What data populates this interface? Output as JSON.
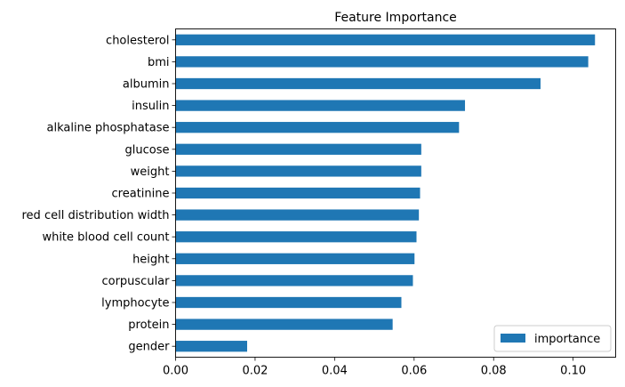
{
  "chart_data": {
    "type": "bar",
    "orientation": "horizontal",
    "title": "Feature Importance",
    "xlabel": "",
    "ylabel": "",
    "categories": [
      "cholesterol",
      "bmi",
      "albumin",
      "insulin",
      "alkaline phosphatase",
      "glucose",
      "weight",
      "creatinine",
      "red cell distribution width",
      "white blood cell count",
      "height",
      "corpuscular",
      "lymphocyte",
      "protein",
      "gender"
    ],
    "series": [
      {
        "name": "importance",
        "color": "#1f77b4",
        "values": [
          0.1055,
          0.1038,
          0.0918,
          0.0728,
          0.0713,
          0.0618,
          0.0618,
          0.0615,
          0.0612,
          0.0606,
          0.0601,
          0.0597,
          0.0568,
          0.0546,
          0.018
        ]
      }
    ],
    "xlim": [
      0,
      0.1107
    ],
    "xticks": [
      "0.00",
      "0.02",
      "0.04",
      "0.06",
      "0.08",
      "0.10"
    ],
    "grid": false,
    "legend": {
      "position": "bottom-right",
      "entries": [
        "importance"
      ]
    }
  }
}
